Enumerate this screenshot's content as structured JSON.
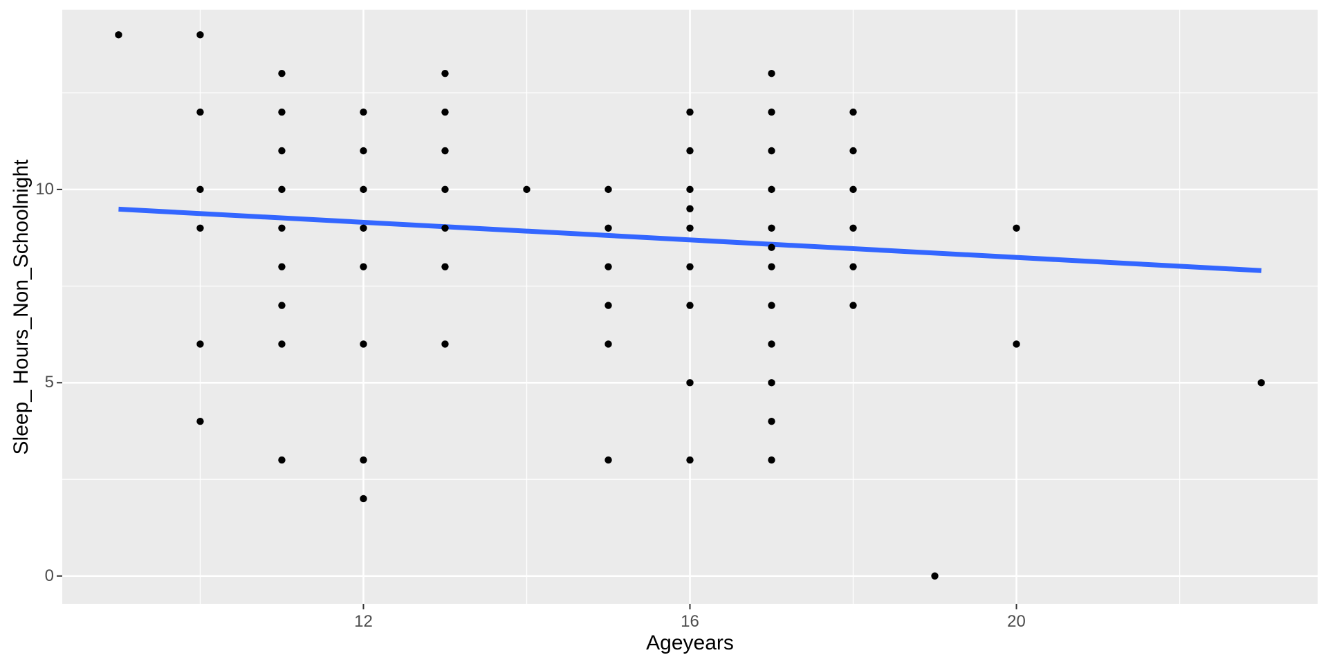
{
  "figure": {
    "background": "#FFFFFF"
  },
  "chart_data": {
    "type": "scatter",
    "title": "",
    "xlabel": "Ageyears",
    "ylabel": "Sleep_ Hours_Non_Schoolnight",
    "xlim": [
      8.31,
      23.69
    ],
    "ylim": [
      -0.72,
      14.65
    ],
    "x_major_ticks": [
      12,
      16,
      20
    ],
    "x_minor_gridlines": [
      10,
      14,
      18,
      22
    ],
    "y_major_ticks": [
      0,
      5,
      10
    ],
    "y_minor_gridlines": [
      2.5,
      7.5,
      12.5
    ],
    "grid": "major and minor white gridlines on grey panel",
    "legend": "none",
    "points": [
      [
        9,
        14
      ],
      [
        10,
        14
      ],
      [
        10,
        12
      ],
      [
        10,
        10
      ],
      [
        10,
        9
      ],
      [
        10,
        6
      ],
      [
        10,
        4
      ],
      [
        11,
        13
      ],
      [
        11,
        12
      ],
      [
        11,
        11
      ],
      [
        11,
        10
      ],
      [
        11,
        9
      ],
      [
        11,
        8
      ],
      [
        11,
        7
      ],
      [
        11,
        6
      ],
      [
        11,
        3
      ],
      [
        12,
        12
      ],
      [
        12,
        11
      ],
      [
        12,
        10
      ],
      [
        12,
        9
      ],
      [
        12,
        8
      ],
      [
        12,
        6
      ],
      [
        12,
        3
      ],
      [
        12,
        2
      ],
      [
        13,
        13
      ],
      [
        13,
        12
      ],
      [
        13,
        11
      ],
      [
        13,
        10
      ],
      [
        13,
        9
      ],
      [
        13,
        8
      ],
      [
        13,
        6
      ],
      [
        14,
        10
      ],
      [
        15,
        10
      ],
      [
        15,
        9
      ],
      [
        15,
        8
      ],
      [
        15,
        7
      ],
      [
        15,
        6
      ],
      [
        15,
        3
      ],
      [
        16,
        12
      ],
      [
        16,
        11
      ],
      [
        16,
        10
      ],
      [
        16,
        9.5
      ],
      [
        16,
        9
      ],
      [
        16,
        8
      ],
      [
        16,
        7
      ],
      [
        16,
        5
      ],
      [
        16,
        3
      ],
      [
        17,
        13
      ],
      [
        17,
        12
      ],
      [
        17,
        11
      ],
      [
        17,
        10
      ],
      [
        17,
        9
      ],
      [
        17,
        8.5
      ],
      [
        17,
        8
      ],
      [
        17,
        7
      ],
      [
        17,
        6
      ],
      [
        17,
        5
      ],
      [
        17,
        4
      ],
      [
        17,
        3
      ],
      [
        18,
        12
      ],
      [
        18,
        11
      ],
      [
        18,
        10
      ],
      [
        18,
        9
      ],
      [
        18,
        8
      ],
      [
        18,
        7
      ],
      [
        19,
        0
      ],
      [
        20,
        9
      ],
      [
        20,
        6
      ],
      [
        23,
        5
      ]
    ],
    "trend": {
      "type": "linear",
      "x": [
        9,
        23
      ],
      "y": [
        9.49,
        7.9
      ]
    }
  },
  "style": {
    "panel_bg": "#EBEBEB",
    "gridline_color": "#FFFFFF",
    "point_color": "#000000",
    "trend_color": "#3366FF",
    "axis_text_color": "#4D4D4D",
    "axis_title_color": "#000000",
    "tick_mark_color": "#333333"
  }
}
